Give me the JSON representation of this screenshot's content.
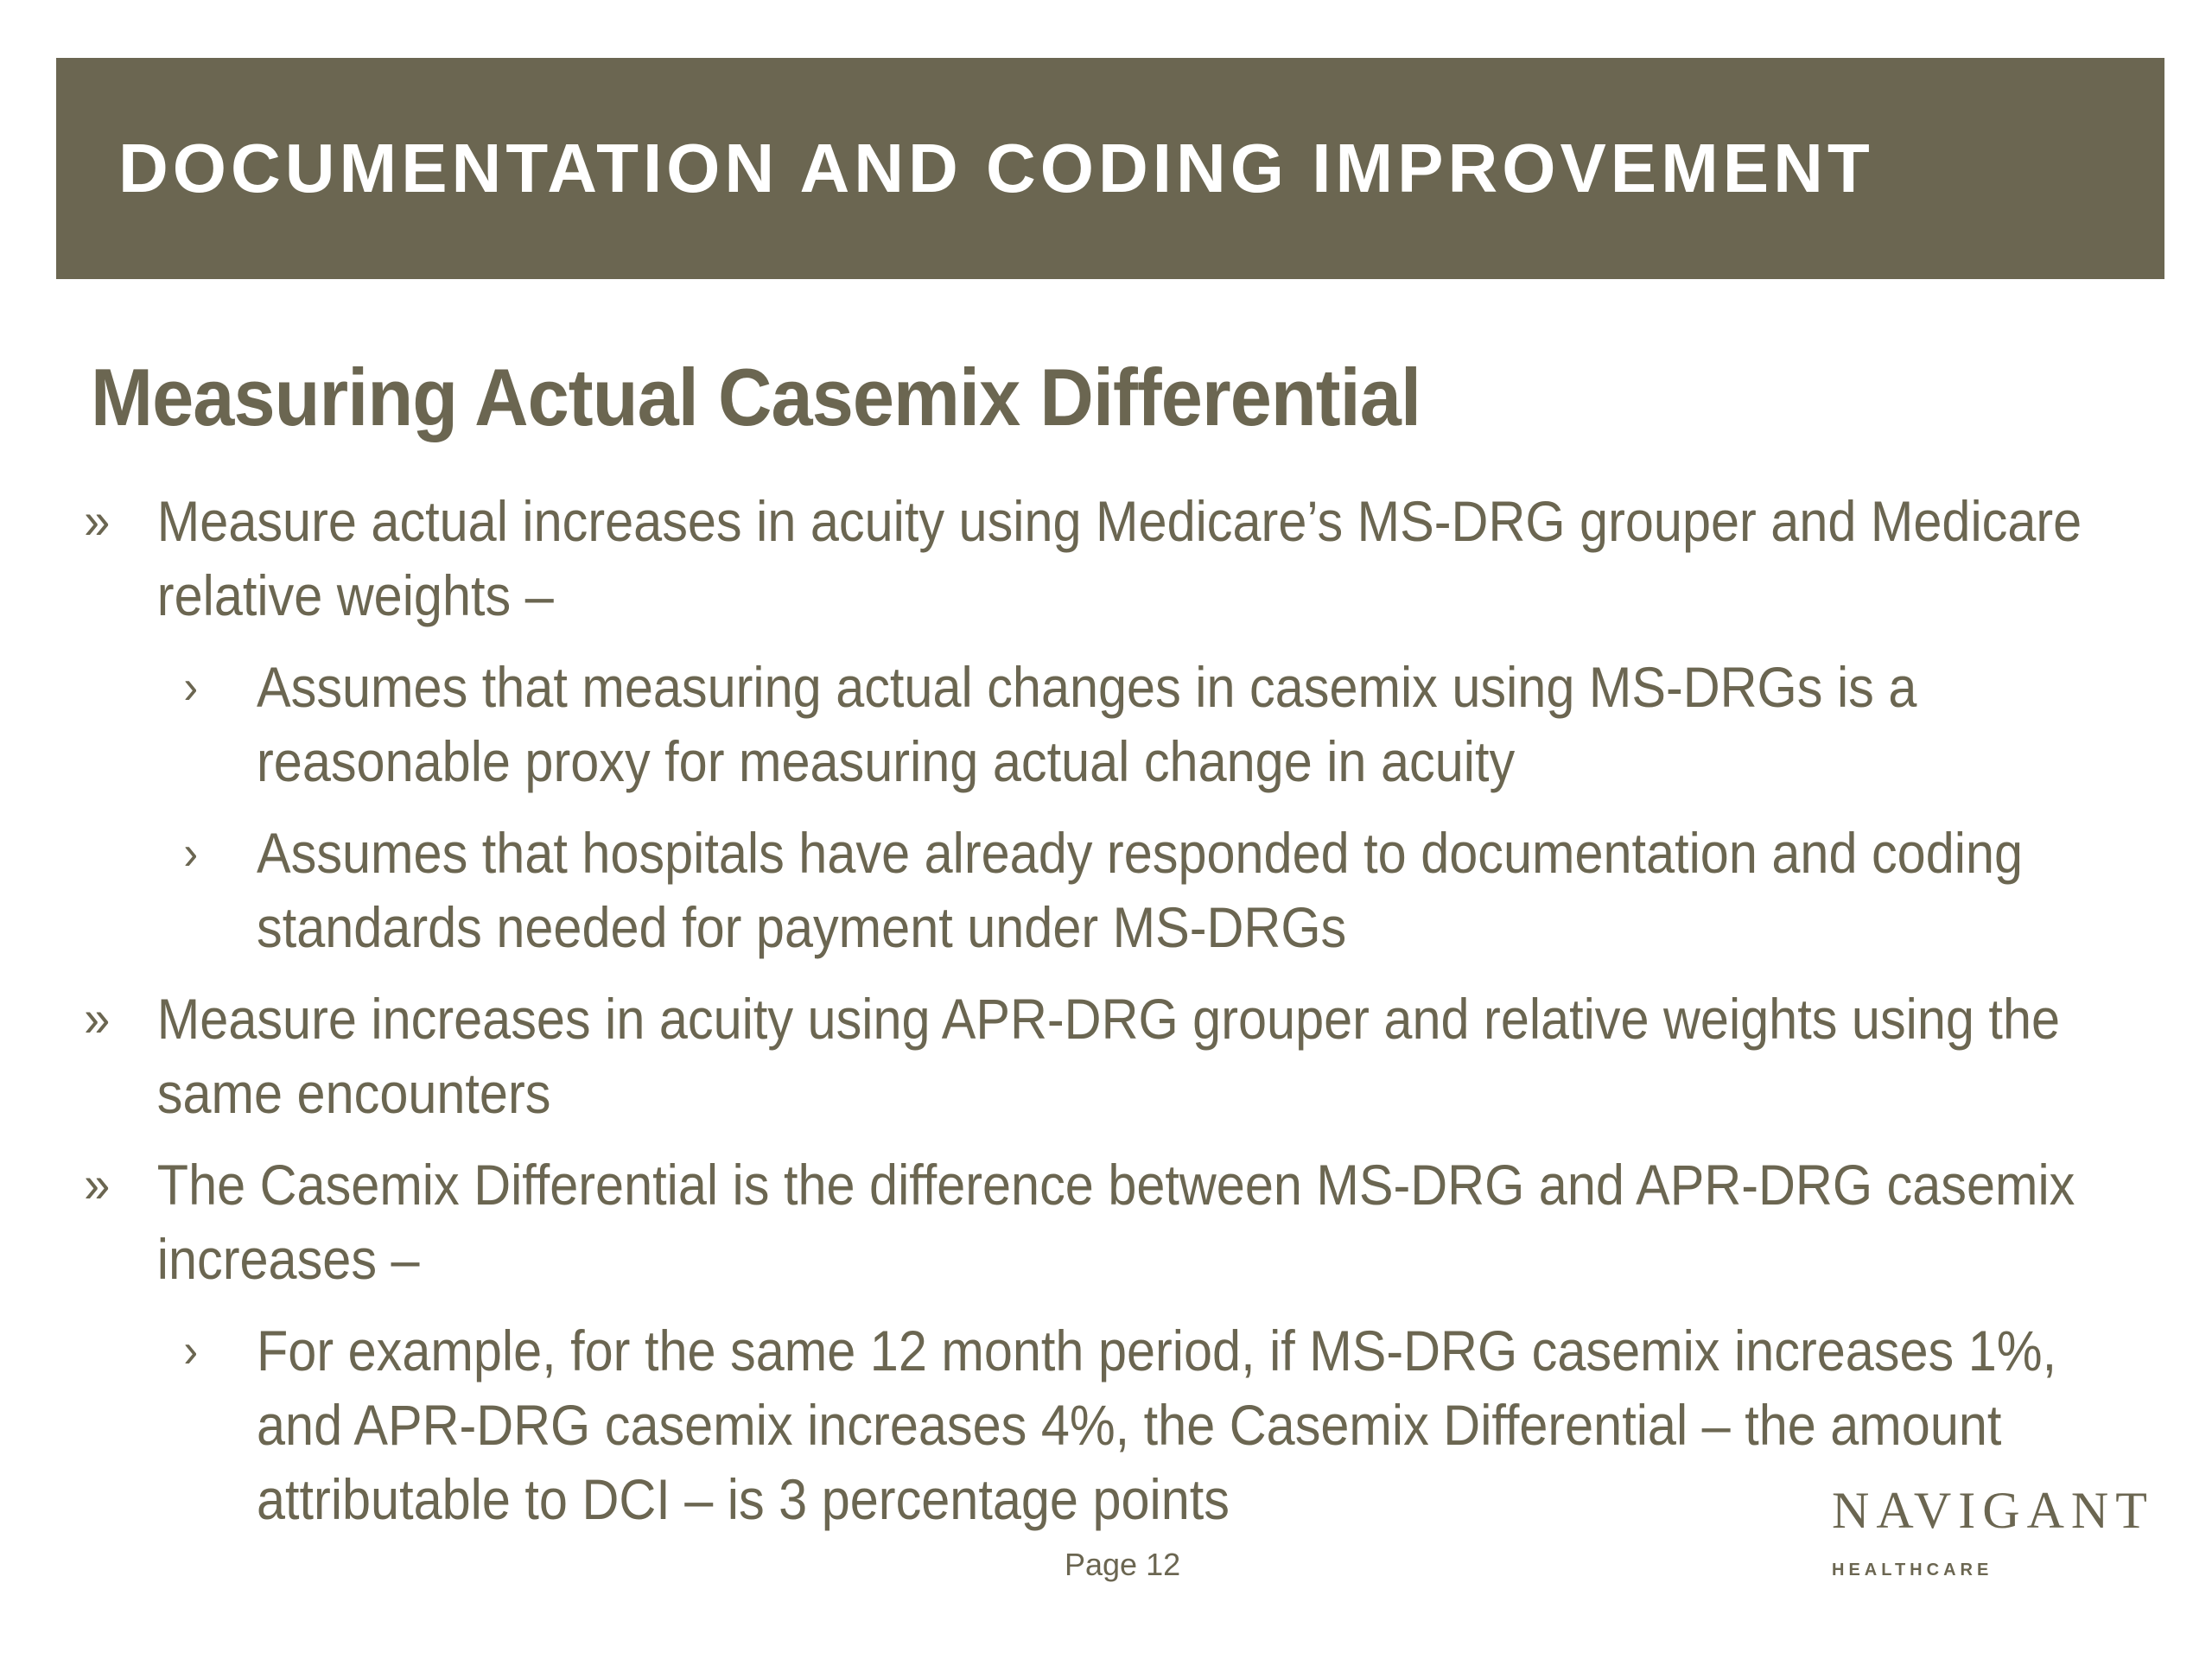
{
  "header": {
    "title": "DOCUMENTATION AND CODING IMPROVEMENT"
  },
  "slide": {
    "heading": "Measuring Actual Casemix Differential",
    "bullets": [
      {
        "marker": "»",
        "lines": [
          "Measure actual increases in acuity using Medicare’s MS-DRG grouper and Medicare",
          "relative weights –"
        ]
      },
      {
        "marker": "›",
        "lines": [
          "Assumes that measuring actual changes in casemix using MS-DRGs is a",
          "reasonable proxy for measuring actual change in acuity"
        ]
      },
      {
        "marker": "›",
        "lines": [
          "Assumes that hospitals have already responded to documentation and coding",
          "standards needed for payment under MS-DRGs"
        ]
      },
      {
        "marker": "»",
        "lines": [
          "Measure increases in acuity using APR-DRG grouper and relative weights using the",
          "same encounters"
        ]
      },
      {
        "marker": "»",
        "lines": [
          "The Casemix Differential is the difference between MS-DRG and APR-DRG casemix",
          "increases –"
        ]
      },
      {
        "marker": "›",
        "lines": [
          "For example, for the same 12 month period, if MS-DRG casemix increases 1%,",
          "and APR-DRG casemix increases 4%, the Casemix Differential – the amount",
          "attributable to DCI – is 3 percentage points"
        ]
      }
    ]
  },
  "footer": {
    "page_label": "Page 12",
    "logo_word": "NAVIGANT",
    "logo_sub": "HEALTHCARE"
  },
  "colors": {
    "header_bg": "#6b6651",
    "text": "#6b6651"
  }
}
